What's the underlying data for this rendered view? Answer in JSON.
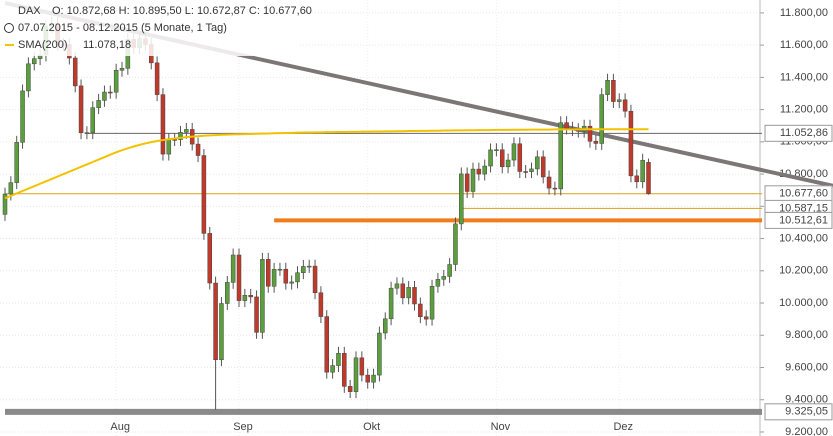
{
  "chart_data": {
    "type": "candlestick",
    "header": {
      "symbol": "DAX",
      "ohlc": "O: 10.872,68  H: 10.895,50  L: 10.672,87  C: 10.677,60",
      "range": "07.07.2015 - 08.12.2015 (5 Monate, 1 Tag)"
    },
    "categories": [
      null,
      null,
      null,
      null,
      null,
      null,
      null,
      null,
      null,
      null,
      null,
      null,
      null,
      null,
      null,
      null,
      null,
      null,
      null,
      "Aug",
      null,
      null,
      null,
      null,
      null,
      null,
      null,
      null,
      null,
      null,
      null,
      null,
      null,
      null,
      null,
      null,
      null,
      null,
      null,
      null,
      "Sep",
      null,
      null,
      null,
      null,
      null,
      null,
      null,
      null,
      null,
      null,
      null,
      null,
      null,
      null,
      null,
      null,
      null,
      null,
      null,
      null,
      null,
      "Okt",
      null,
      null,
      null,
      null,
      null,
      null,
      null,
      null,
      null,
      null,
      null,
      null,
      null,
      null,
      null,
      null,
      null,
      null,
      null,
      null,
      null,
      "Nov",
      null,
      null,
      null,
      null,
      null,
      null,
      null,
      null,
      null,
      null,
      null,
      null,
      null,
      null,
      null,
      null,
      null,
      null,
      null,
      null,
      "Dez",
      null,
      null,
      null,
      null,
      null
    ],
    "series": [
      {
        "name": "DAX",
        "up_color": "#5b9e3c",
        "down_color": "#c0392b",
        "open": [
          10550,
          10676,
          10747,
          10997,
          11316,
          11484,
          11516,
          11539,
          11716,
          11735,
          11604,
          11604,
          11520,
          11347,
          11056,
          11057,
          11212,
          11257,
          11309,
          11308,
          11444,
          11456,
          11636,
          11585,
          11640,
          11604,
          11490,
          11293,
          10924,
          11015,
          11014,
          11059,
          11077,
          10986,
          10915,
          10432,
          10124,
          9648,
          9997,
          10128,
          10298,
          10015,
          10048,
          10038,
          9818,
          10271,
          10104,
          10209,
          10210,
          10123,
          10131,
          10188,
          10227,
          10229,
          10064,
          9916,
          9571,
          9612,
          9688,
          9483,
          9450,
          9660,
          9553,
          9509,
          9553,
          9814,
          9902,
          10092,
          10119,
          10032,
          10097,
          9994,
          9915,
          9900,
          10104,
          10147,
          10165,
          10239,
          10491,
          10801,
          10692,
          10831,
          10800,
          10850,
          10950,
          10951,
          10845,
          10887,
          10988,
          10816,
          10815,
          10832,
          10907,
          10782,
          10713,
          10708,
          11119,
          11085,
          11076,
          11066,
          11097,
          11004,
          10990,
          11293,
          11382,
          11250,
          11261,
          11190,
          10789,
          10752,
          10872.68
        ],
        "high": [
          10716,
          10787,
          11037,
          11356,
          11524,
          11556,
          11579,
          11756,
          11775,
          11775,
          11644,
          11644,
          11560,
          11387,
          11097,
          11252,
          11297,
          11349,
          11349,
          11484,
          11496,
          11676,
          11676,
          11680,
          11680,
          11644,
          11530,
          11333,
          11055,
          11055,
          11099,
          11117,
          11117,
          11026,
          10955,
          10472,
          10164,
          10037,
          10168,
          10338,
          10338,
          10088,
          10088,
          10078,
          10311,
          10311,
          10249,
          10250,
          10250,
          10171,
          10228,
          10267,
          10269,
          10269,
          10104,
          9956,
          9652,
          9728,
          9728,
          9523,
          9700,
          9700,
          9593,
          9593,
          9854,
          9942,
          10132,
          10159,
          10159,
          10137,
          10137,
          10034,
          9955,
          10144,
          10187,
          10205,
          10279,
          10531,
          10841,
          10841,
          10871,
          10871,
          10890,
          10990,
          10991,
          10991,
          10927,
          11028,
          11028,
          10856,
          10872,
          10947,
          10947,
          10822,
          10753,
          11159,
          11159,
          11125,
          11116,
          11137,
          11137,
          11044,
          11333,
          11422,
          11422,
          11301,
          11301,
          11230,
          10829,
          10926,
          10895.5
        ],
        "low": [
          10510,
          10636,
          10707,
          10957,
          11276,
          11444,
          11476,
          11499,
          11676,
          11564,
          11564,
          11480,
          11307,
          11016,
          11016,
          11017,
          11172,
          11217,
          11268,
          11268,
          11404,
          11416,
          11545,
          11545,
          11564,
          11450,
          11253,
          10884,
          10884,
          10974,
          10974,
          11019,
          10946,
          10875,
          10392,
          10084,
          9338,
          9608,
          9957,
          10088,
          9975,
          9975,
          9998,
          9778,
          9778,
          10064,
          10064,
          10169,
          10083,
          10083,
          10091,
          10148,
          10187,
          10024,
          9876,
          9531,
          9531,
          9572,
          9443,
          9410,
          9410,
          9513,
          9469,
          9469,
          9513,
          9774,
          9862,
          10052,
          9992,
          9992,
          9954,
          9875,
          9860,
          9860,
          10064,
          10107,
          10125,
          10199,
          10451,
          10652,
          10652,
          10760,
          10760,
          10810,
          10910,
          10805,
          10805,
          10847,
          10776,
          10775,
          10775,
          10792,
          10742,
          10673,
          10668,
          10668,
          11045,
          11036,
          11026,
          11026,
          10964,
          10950,
          10950,
          11253,
          11210,
          11210,
          11150,
          10749,
          10712,
          10712,
          10672.87
        ],
        "close": [
          10676,
          10747,
          10997,
          11316,
          11484,
          11516,
          11539,
          11716,
          11735,
          11604,
          11604,
          11520,
          11347,
          11056,
          11057,
          11212,
          11257,
          11309,
          11308,
          11444,
          11456,
          11636,
          11585,
          11640,
          11604,
          11490,
          11293,
          10924,
          11015,
          11014,
          11059,
          11077,
          10986,
          10915,
          10432,
          10124,
          9648,
          9997,
          10128,
          10298,
          10015,
          10048,
          10038,
          9818,
          10271,
          10104,
          10209,
          10210,
          10123,
          10131,
          10188,
          10227,
          10229,
          10064,
          9916,
          9571,
          9612,
          9688,
          9483,
          9450,
          9660,
          9553,
          9509,
          9553,
          9814,
          9902,
          10092,
          10119,
          10032,
          10097,
          9994,
          9915,
          9900,
          10104,
          10147,
          10165,
          10239,
          10491,
          10801,
          10692,
          10831,
          10800,
          10850,
          10950,
          10951,
          10845,
          10887,
          10988,
          10816,
          10815,
          10832,
          10907,
          10782,
          10713,
          10708,
          11119,
          11085,
          11076,
          11066,
          11097,
          11004,
          10990,
          11293,
          11382,
          11250,
          11261,
          11190,
          10789,
          10752,
          10886,
          10677.6
        ]
      },
      {
        "name": "SMA(200)",
        "value_label": "11.078,18",
        "color": "#f2c200",
        "values": [
          10650,
          10665,
          10680,
          10695,
          10710,
          10725,
          10740,
          10755,
          10770,
          10785,
          10800,
          10815,
          10830,
          10845,
          10860,
          10875,
          10890,
          10905,
          10920,
          10935,
          10948,
          10960,
          10971,
          10981,
          10990,
          10998,
          11005,
          11011,
          11016,
          11021,
          11025,
          11029,
          11032,
          11035,
          11038,
          11040,
          11042,
          11044,
          11045,
          11046,
          11047,
          11048,
          11049,
          11050,
          11051,
          11052,
          11053,
          11054,
          11055,
          11056,
          11057,
          11058,
          11058,
          11059,
          11059,
          11060,
          11060,
          11061,
          11061,
          11062,
          11062,
          11063,
          11063,
          11064,
          11064,
          11065,
          11065,
          11066,
          11066,
          11067,
          11067,
          11068,
          11068,
          11069,
          11069,
          11070,
          11070,
          11071,
          11071,
          11072,
          11072,
          11073,
          11073,
          11073,
          11074,
          11074,
          11074,
          11075,
          11075,
          11075,
          11076,
          11076,
          11076,
          11076,
          11077,
          11077,
          11077,
          11077,
          11077,
          11078,
          11078,
          11078,
          11078,
          11078,
          11078,
          11078,
          11078,
          11078,
          11078,
          11078,
          11078.18
        ]
      }
    ],
    "hlines": [
      {
        "value": 11052.86,
        "label": "11.052,86",
        "color": "#666666",
        "from": 14,
        "width": 1
      },
      {
        "value": 10677.6,
        "label": "10.677,60",
        "color": "#d9a21b",
        "from": 0,
        "width": 1
      },
      {
        "value": 10587.15,
        "label": "10.587,15",
        "color": "#d9a21b",
        "from": 78,
        "width": 1
      },
      {
        "value": 10512.61,
        "label": "10.512,61",
        "color": "#f07d1a",
        "from": 46,
        "width": 4
      },
      {
        "value": 9325.05,
        "label": "9.325,05",
        "color": "#8a8a8a",
        "from": 0,
        "width": 6
      }
    ],
    "trendline": {
      "x": [
        0,
        110
      ],
      "values": [
        11861,
        10980
      ],
      "color": "#7d7676"
    },
    "ylim": [
      9175,
      11880
    ],
    "yticks": [
      {
        "value": 11800,
        "label": "11.800,00"
      },
      {
        "value": 11600,
        "label": "11.600,00"
      },
      {
        "value": 11400,
        "label": "11.400,00"
      },
      {
        "value": 11200,
        "label": "11.200,00"
      },
      {
        "value": 11000,
        "label": "11.000,00"
      },
      {
        "value": 10800,
        "label": "10.800,00"
      },
      {
        "value": 10600,
        "label": "10.600,00"
      },
      {
        "value": 10400,
        "label": "10.400,00"
      },
      {
        "value": 10200,
        "label": "10.200,00"
      },
      {
        "value": 10000,
        "label": "10.000,00"
      },
      {
        "value": 9800,
        "label": "9.800,00"
      },
      {
        "value": 9600,
        "label": "9.600,00"
      },
      {
        "value": 9400,
        "label": "9.400,00"
      },
      {
        "value": 9200,
        "label": "9.200,00"
      }
    ],
    "grid": true
  }
}
